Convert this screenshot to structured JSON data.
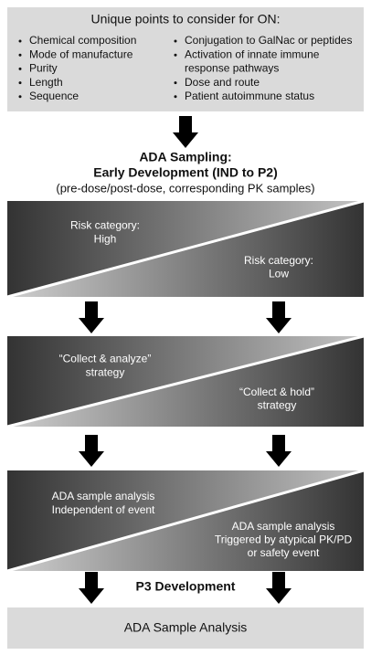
{
  "top_box": {
    "title": "Unique points to consider for ON:",
    "left_items": [
      [
        "Chemical composition"
      ],
      [
        "Mode of manufacture"
      ],
      [
        "Purity"
      ],
      [
        "Length"
      ],
      [
        "Sequence"
      ]
    ],
    "right_items": [
      [
        "Conjugation to GalNac or peptides"
      ],
      [
        "Activation of innate immune",
        "response pathways"
      ],
      [
        "Dose and route"
      ],
      [
        "Patient autoimmune status"
      ]
    ]
  },
  "sampling": {
    "title": [
      "ADA Sampling:",
      "Early Development (IND to P2)"
    ],
    "subtitle": "(pre-dose/post-dose, corresponding PK samples)"
  },
  "panels": [
    {
      "left": [
        "Risk category:",
        "High"
      ],
      "right": [
        "Risk category:",
        "Low"
      ]
    },
    {
      "left": [
        "“Collect & analyze”",
        "strategy"
      ],
      "right": [
        "“Collect & hold”",
        "strategy"
      ]
    },
    {
      "left": [
        "ADA sample analysis",
        "Independent of event"
      ],
      "right": [
        "ADA sample analysis",
        "Triggered by atypical PK/PD",
        "or safety event"
      ]
    }
  ],
  "p3_label": "P3 Development",
  "bottom_box": {
    "label": "ADA Sample Analysis"
  }
}
